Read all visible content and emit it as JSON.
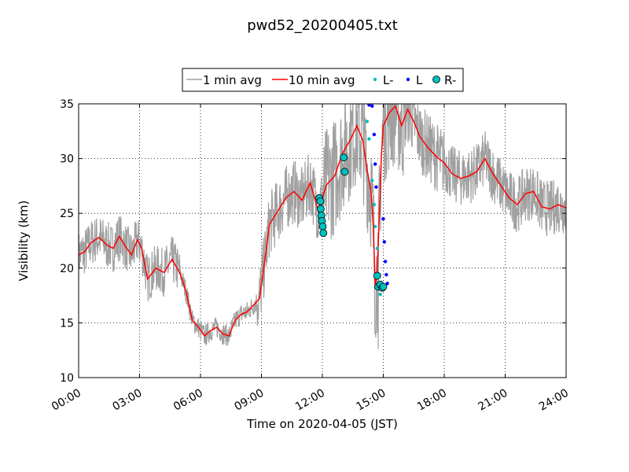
{
  "chart_data": {
    "type": "line",
    "title": "pwd52_20200405.txt",
    "xlabel": "Time on 2020-04-05 (JST)",
    "ylabel": "Visibility (km)",
    "xlim_hours": [
      0,
      24
    ],
    "ylim": [
      10,
      35
    ],
    "x_ticks": [
      "00:00",
      "03:00",
      "06:00",
      "09:00",
      "12:00",
      "15:00",
      "18:00",
      "21:00",
      "24:00"
    ],
    "y_ticks": [
      "10",
      "15",
      "20",
      "25",
      "30",
      "35"
    ],
    "grid": true,
    "legend_position": "top-center",
    "legend": [
      "1 min avg",
      "10 min avg",
      "L-",
      "L",
      "R-"
    ],
    "colors": {
      "one_min": "#a0a0a0",
      "ten_min": "#ff0000",
      "L_minus": "#00bfbf",
      "L": "#0000ff",
      "R_minus": "#00bfbf"
    },
    "series": [
      {
        "name": "10 min avg",
        "x": [
          0,
          0.3,
          0.6,
          1,
          1.4,
          1.7,
          2,
          2.3,
          2.6,
          2.9,
          3.1,
          3.4,
          3.8,
          4.2,
          4.6,
          5,
          5.3,
          5.6,
          5.9,
          6.2,
          6.5,
          6.8,
          7.1,
          7.4,
          7.7,
          8,
          8.3,
          8.6,
          8.9,
          9.1,
          9.4,
          9.8,
          10.2,
          10.6,
          11,
          11.4,
          11.8,
          12.2,
          12.6,
          13,
          13.4,
          13.7,
          14,
          14.2,
          14.4,
          14.5,
          14.6,
          14.7,
          14.8,
          14.9,
          15,
          15.3,
          15.6,
          15.9,
          16.2,
          16.5,
          16.8,
          17.2,
          17.6,
          18,
          18.4,
          18.8,
          19.2,
          19.6,
          20,
          20.4,
          20.8,
          21.2,
          21.6,
          22,
          22.4,
          22.8,
          23.2,
          23.6,
          24
        ],
        "y": [
          21.2,
          21.5,
          22.3,
          22.8,
          22.1,
          21.8,
          22.9,
          22.0,
          21.2,
          22.6,
          21.8,
          19.0,
          20.0,
          19.6,
          20.8,
          19.5,
          17.8,
          15.2,
          14.6,
          13.8,
          14.3,
          14.6,
          14.0,
          13.8,
          15.2,
          15.8,
          16.0,
          16.6,
          17.2,
          19.8,
          24.0,
          25.2,
          26.4,
          27.0,
          26.2,
          27.8,
          25.2,
          27.6,
          28.4,
          30.5,
          31.8,
          33.0,
          31.6,
          29.0,
          27.0,
          24.0,
          18.5,
          19.5,
          24.5,
          30.0,
          33.0,
          34.2,
          34.8,
          33.0,
          34.5,
          33.4,
          32.0,
          31.0,
          30.2,
          29.6,
          28.6,
          28.2,
          28.4,
          28.8,
          30.0,
          28.6,
          27.5,
          26.4,
          25.8,
          26.8,
          27.0,
          25.6,
          25.4,
          25.8,
          25.5
        ]
      },
      {
        "name": "L-",
        "x": [
          14.2,
          14.3,
          14.45,
          14.55,
          14.6,
          14.7,
          14.8,
          14.85
        ],
        "y": [
          33.4,
          31.8,
          28.0,
          25.8,
          23.8,
          21.8,
          19.4,
          17.6
        ]
      },
      {
        "name": "L",
        "x": [
          14.3,
          14.45,
          14.55,
          14.6,
          14.65,
          15.0,
          15.05,
          15.1,
          15.15,
          15.2
        ],
        "y": [
          34.9,
          34.8,
          32.2,
          29.5,
          27.4,
          24.5,
          22.4,
          20.6,
          19.4,
          18.6
        ]
      },
      {
        "name": "R-",
        "x": [
          11.85,
          11.9,
          11.92,
          11.95,
          11.98,
          12.02,
          12.05,
          13.05,
          13.1,
          14.7,
          14.75,
          14.85,
          14.95,
          15.0
        ],
        "y": [
          26.4,
          26.1,
          25.4,
          24.8,
          24.3,
          23.8,
          23.2,
          30.1,
          28.8,
          19.3,
          18.3,
          18.5,
          18.2,
          18.3
        ]
      }
    ]
  }
}
